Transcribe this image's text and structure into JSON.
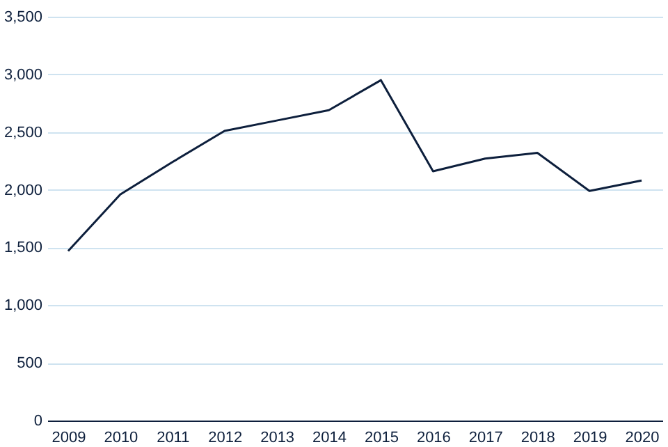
{
  "chart_data": {
    "type": "line",
    "categories": [
      "2009",
      "2010",
      "2011",
      "2012",
      "2013",
      "2014",
      "2015",
      "2016",
      "2017",
      "2018",
      "2019",
      "2020"
    ],
    "series": [
      {
        "color": "#0d1f3c",
        "values": [
          1470,
          1960,
          2240,
          2510,
          2600,
          2690,
          2950,
          2160,
          2270,
          2320,
          1990,
          2080
        ]
      }
    ],
    "ylim": [
      0,
      3500
    ],
    "yticks": [
      0,
      500,
      {
        "value": 1000,
        "label": "1,000"
      },
      {
        "value": 1500,
        "label": "1,500"
      },
      {
        "value": 2000,
        "label": "2,000"
      },
      {
        "value": 2500,
        "label": "2,500"
      },
      {
        "value": 3000,
        "label": "3,000"
      },
      {
        "value": 3500,
        "label": "3,500"
      }
    ],
    "grid": "y",
    "marker": "none",
    "line_style": "solid"
  }
}
